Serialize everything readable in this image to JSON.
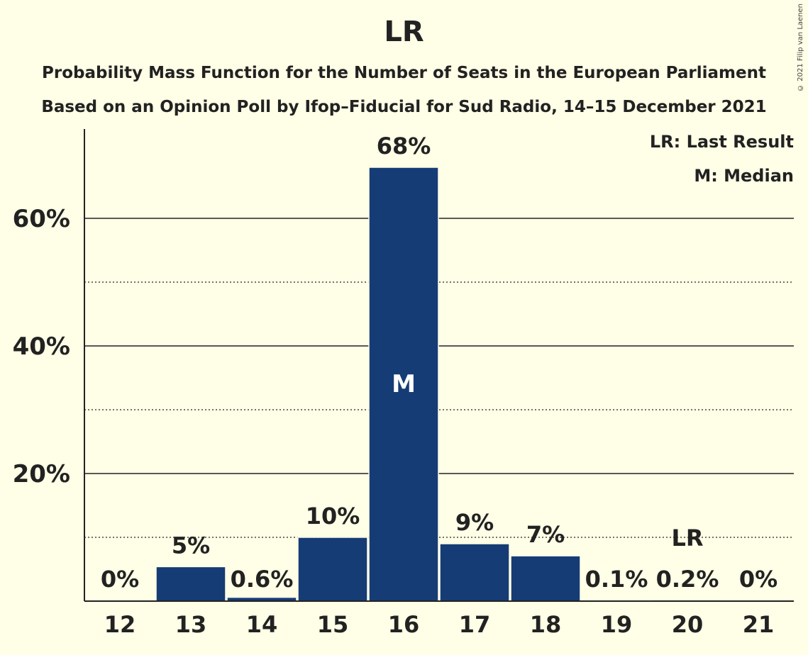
{
  "header": {
    "title": "LR",
    "subtitle1": "Probability Mass Function for the Number of Seats in the European Parliament",
    "subtitle2": "Based on an Opinion Poll by Ifop–Fiducial for Sud Radio, 14–15 December 2021",
    "copyright": "© 2021 Filip van Laenen"
  },
  "legend": {
    "last_result": "LR: Last Result",
    "median": "M: Median"
  },
  "colors": {
    "background": "#FFFEE6",
    "bar": "#163C76",
    "text": "#222222"
  },
  "chart_data": {
    "type": "bar",
    "categories": [
      "12",
      "13",
      "14",
      "15",
      "16",
      "17",
      "18",
      "19",
      "20",
      "21"
    ],
    "values": [
      0,
      5.4,
      0.6,
      10,
      68,
      9,
      7.1,
      0.1,
      0.2,
      0
    ],
    "labels": [
      "0%",
      "5%",
      "0.6%",
      "10%",
      "68%",
      "9%",
      "7%",
      "0.1%",
      "0.2%",
      "0%"
    ],
    "ylim": [
      0,
      74
    ],
    "yticks_major": [
      20,
      40,
      60
    ],
    "ytick_labels": [
      "20%",
      "40%",
      "60%"
    ],
    "yticks_minor": [
      10,
      30,
      50
    ],
    "median_category": "16",
    "median_marker": "M",
    "last_result_category": "20",
    "last_result_marker": "LR",
    "grid": true
  }
}
